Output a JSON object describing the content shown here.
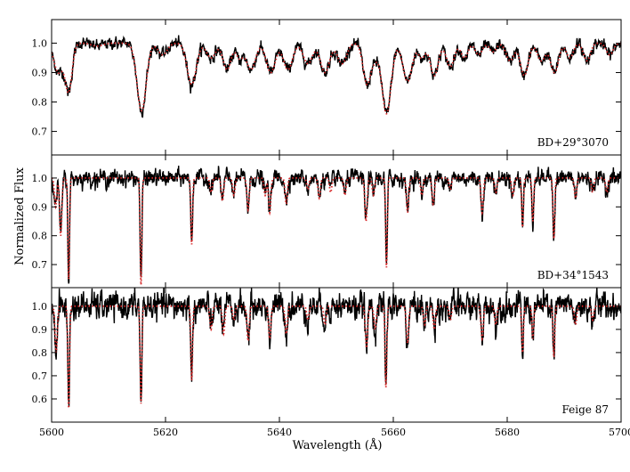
{
  "chart_data": {
    "type": "line",
    "xlabel": "Wavelength (Å)",
    "ylabel": "Normalized Flux",
    "xlim": [
      5600,
      5700
    ],
    "x_ticks": [
      5600,
      5620,
      5640,
      5660,
      5680,
      5700
    ],
    "grid": false,
    "series_styles": {
      "observed": {
        "color": "#000000",
        "style": "solid"
      },
      "model": {
        "color": "#d62728",
        "style": "dotted"
      }
    },
    "continuum_level": 1.0,
    "panels": [
      {
        "label": "BD+29°3070",
        "ylim": [
          0.62,
          1.08
        ],
        "y_ticks": [
          0.7,
          0.8,
          0.9,
          1.0
        ],
        "y_tick_labels": [
          "0.7",
          "0.8",
          "0.9",
          "1.0"
        ],
        "noise": 0.008,
        "lines": [
          {
            "center": 5601.2,
            "depth": 0.1,
            "width": 0.8
          },
          {
            "center": 5603.0,
            "depth": 0.16,
            "width": 0.6
          },
          {
            "center": 5608.0,
            "depth": 0.01,
            "width": 1.0
          },
          {
            "center": 5615.8,
            "depth": 0.23,
            "width": 0.8
          },
          {
            "center": 5619.5,
            "depth": 0.04,
            "width": 0.8
          },
          {
            "center": 5624.6,
            "depth": 0.14,
            "width": 0.8
          },
          {
            "center": 5628.0,
            "depth": 0.05,
            "width": 0.8
          },
          {
            "center": 5630.8,
            "depth": 0.09,
            "width": 0.7
          },
          {
            "center": 5633.0,
            "depth": 0.05,
            "width": 0.6
          },
          {
            "center": 5635.0,
            "depth": 0.09,
            "width": 0.8
          },
          {
            "center": 5638.5,
            "depth": 0.1,
            "width": 0.8
          },
          {
            "center": 5641.5,
            "depth": 0.09,
            "width": 0.8
          },
          {
            "center": 5645.0,
            "depth": 0.07,
            "width": 0.8
          },
          {
            "center": 5648.0,
            "depth": 0.1,
            "width": 0.8
          },
          {
            "center": 5651.0,
            "depth": 0.07,
            "width": 0.8
          },
          {
            "center": 5655.4,
            "depth": 0.14,
            "width": 0.7
          },
          {
            "center": 5656.8,
            "depth": 0.04,
            "width": 0.5
          },
          {
            "center": 5658.8,
            "depth": 0.24,
            "width": 0.8
          },
          {
            "center": 5662.5,
            "depth": 0.13,
            "width": 0.8
          },
          {
            "center": 5665.0,
            "depth": 0.05,
            "width": 0.6
          },
          {
            "center": 5667.2,
            "depth": 0.11,
            "width": 0.7
          },
          {
            "center": 5670.0,
            "depth": 0.08,
            "width": 0.7
          },
          {
            "center": 5672.5,
            "depth": 0.05,
            "width": 0.6
          },
          {
            "center": 5675.0,
            "depth": 0.04,
            "width": 0.6
          },
          {
            "center": 5677.5,
            "depth": 0.03,
            "width": 0.6
          },
          {
            "center": 5680.5,
            "depth": 0.06,
            "width": 0.7
          },
          {
            "center": 5683.0,
            "depth": 0.11,
            "width": 0.7
          },
          {
            "center": 5686.0,
            "depth": 0.06,
            "width": 0.7
          },
          {
            "center": 5688.3,
            "depth": 0.1,
            "width": 0.7
          },
          {
            "center": 5691.0,
            "depth": 0.05,
            "width": 0.6
          },
          {
            "center": 5694.0,
            "depth": 0.06,
            "width": 0.6
          },
          {
            "center": 5698.0,
            "depth": 0.04,
            "width": 0.6
          }
        ]
      },
      {
        "label": "BD+34°1543",
        "ylim": [
          0.62,
          1.08
        ],
        "y_ticks": [
          0.7,
          0.8,
          0.9,
          1.0
        ],
        "y_tick_labels": [
          "0.7",
          "0.8",
          "0.9",
          "1.0"
        ],
        "noise": 0.012,
        "lines": [
          {
            "center": 5600.7,
            "depth": 0.1,
            "width": 0.2
          },
          {
            "center": 5601.6,
            "depth": 0.2,
            "width": 0.2
          },
          {
            "center": 5603.0,
            "depth": 0.35,
            "width": 0.15
          },
          {
            "center": 5615.7,
            "depth": 0.37,
            "width": 0.15
          },
          {
            "center": 5624.6,
            "depth": 0.23,
            "width": 0.15
          },
          {
            "center": 5628.0,
            "depth": 0.05,
            "width": 0.2
          },
          {
            "center": 5630.0,
            "depth": 0.08,
            "width": 0.2
          },
          {
            "center": 5632.0,
            "depth": 0.06,
            "width": 0.2
          },
          {
            "center": 5634.5,
            "depth": 0.11,
            "width": 0.2
          },
          {
            "center": 5637.5,
            "depth": 0.06,
            "width": 0.2
          },
          {
            "center": 5638.3,
            "depth": 0.12,
            "width": 0.2
          },
          {
            "center": 5641.2,
            "depth": 0.09,
            "width": 0.2
          },
          {
            "center": 5645.0,
            "depth": 0.04,
            "width": 0.2
          },
          {
            "center": 5647.0,
            "depth": 0.07,
            "width": 0.2
          },
          {
            "center": 5649.0,
            "depth": 0.05,
            "width": 0.2
          },
          {
            "center": 5651.5,
            "depth": 0.06,
            "width": 0.2
          },
          {
            "center": 5655.2,
            "depth": 0.15,
            "width": 0.2
          },
          {
            "center": 5656.5,
            "depth": 0.06,
            "width": 0.2
          },
          {
            "center": 5658.8,
            "depth": 0.31,
            "width": 0.15
          },
          {
            "center": 5662.5,
            "depth": 0.12,
            "width": 0.2
          },
          {
            "center": 5665.0,
            "depth": 0.06,
            "width": 0.2
          },
          {
            "center": 5667.0,
            "depth": 0.09,
            "width": 0.2
          },
          {
            "center": 5670.0,
            "depth": 0.04,
            "width": 0.2
          },
          {
            "center": 5675.6,
            "depth": 0.12,
            "width": 0.2
          },
          {
            "center": 5678.0,
            "depth": 0.05,
            "width": 0.2
          },
          {
            "center": 5681.0,
            "depth": 0.06,
            "width": 0.2
          },
          {
            "center": 5682.7,
            "depth": 0.17,
            "width": 0.15
          },
          {
            "center": 5684.5,
            "depth": 0.15,
            "width": 0.15
          },
          {
            "center": 5688.2,
            "depth": 0.21,
            "width": 0.15
          },
          {
            "center": 5692.0,
            "depth": 0.07,
            "width": 0.2
          },
          {
            "center": 5695.0,
            "depth": 0.05,
            "width": 0.2
          },
          {
            "center": 5697.5,
            "depth": 0.05,
            "width": 0.2
          }
        ]
      },
      {
        "label": "Feige 87",
        "ylim": [
          0.5,
          1.08
        ],
        "y_ticks": [
          0.6,
          0.7,
          0.8,
          0.9,
          1.0
        ],
        "y_tick_labels": [
          "0.6",
          "0.7",
          "0.8",
          "0.9",
          "1.0"
        ],
        "noise": 0.025,
        "lines": [
          {
            "center": 5600.8,
            "depth": 0.2,
            "width": 0.2
          },
          {
            "center": 5603.0,
            "depth": 0.44,
            "width": 0.15
          },
          {
            "center": 5615.7,
            "depth": 0.42,
            "width": 0.15
          },
          {
            "center": 5624.6,
            "depth": 0.32,
            "width": 0.15
          },
          {
            "center": 5628.0,
            "depth": 0.1,
            "width": 0.2
          },
          {
            "center": 5630.2,
            "depth": 0.12,
            "width": 0.2
          },
          {
            "center": 5632.0,
            "depth": 0.06,
            "width": 0.2
          },
          {
            "center": 5634.5,
            "depth": 0.15,
            "width": 0.2
          },
          {
            "center": 5638.3,
            "depth": 0.14,
            "width": 0.2
          },
          {
            "center": 5641.2,
            "depth": 0.12,
            "width": 0.2
          },
          {
            "center": 5645.0,
            "depth": 0.06,
            "width": 0.2
          },
          {
            "center": 5648.0,
            "depth": 0.08,
            "width": 0.2
          },
          {
            "center": 5655.3,
            "depth": 0.18,
            "width": 0.2
          },
          {
            "center": 5656.8,
            "depth": 0.1,
            "width": 0.2
          },
          {
            "center": 5658.7,
            "depth": 0.35,
            "width": 0.15
          },
          {
            "center": 5662.5,
            "depth": 0.16,
            "width": 0.2
          },
          {
            "center": 5665.5,
            "depth": 0.08,
            "width": 0.2
          },
          {
            "center": 5667.2,
            "depth": 0.1,
            "width": 0.2
          },
          {
            "center": 5670.0,
            "depth": 0.06,
            "width": 0.2
          },
          {
            "center": 5675.6,
            "depth": 0.14,
            "width": 0.2
          },
          {
            "center": 5678.0,
            "depth": 0.08,
            "width": 0.2
          },
          {
            "center": 5682.7,
            "depth": 0.2,
            "width": 0.15
          },
          {
            "center": 5684.5,
            "depth": 0.14,
            "width": 0.15
          },
          {
            "center": 5688.2,
            "depth": 0.22,
            "width": 0.15
          },
          {
            "center": 5692.0,
            "depth": 0.08,
            "width": 0.2
          },
          {
            "center": 5695.0,
            "depth": 0.06,
            "width": 0.2
          }
        ]
      }
    ]
  }
}
